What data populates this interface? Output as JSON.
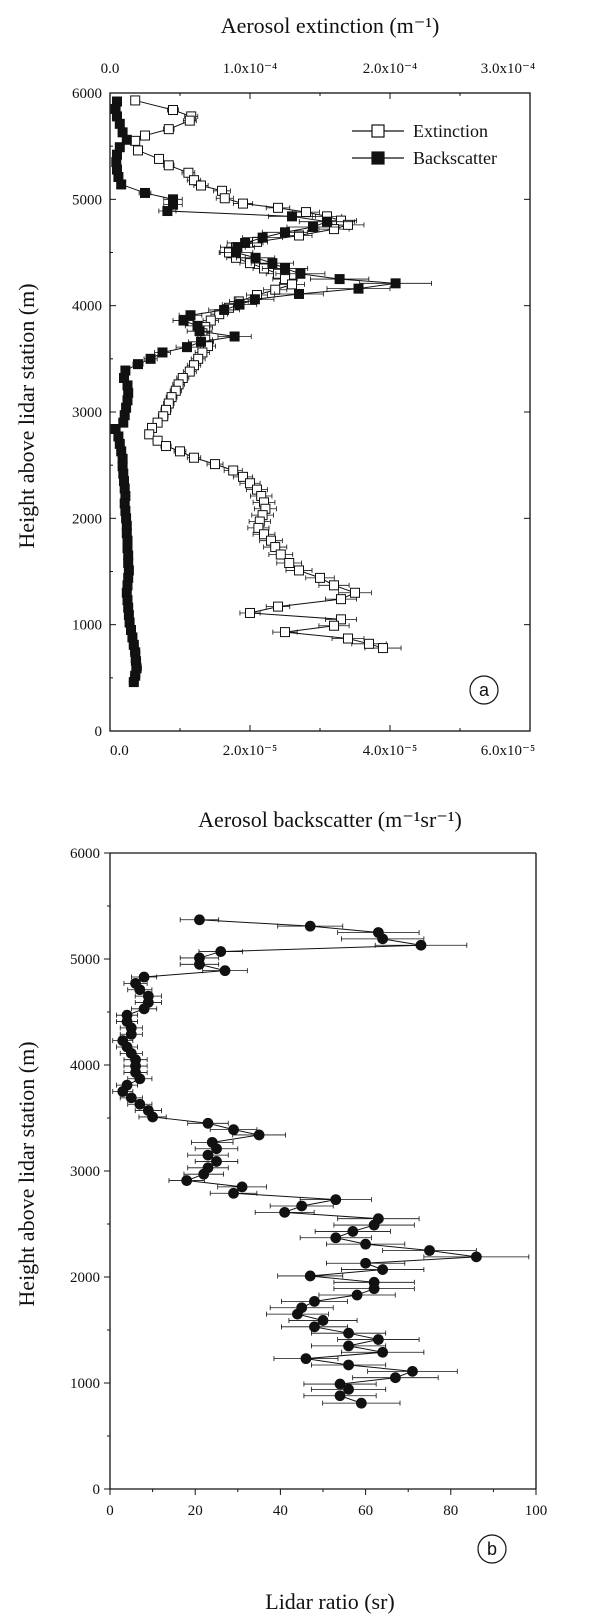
{
  "chart_data": [
    {
      "panel": "a",
      "type": "line",
      "xlabel_bottom": "Aerosol backscatter (m⁻¹sr⁻¹)",
      "xlabel_top": "Aerosol extinction (m⁻¹)",
      "ylabel": "Height above lidar station (m)",
      "xlim_bottom": [
        0,
        6e-05
      ],
      "xlim_top": [
        0,
        0.0003
      ],
      "ylim": [
        0,
        6000
      ],
      "bottom_ticks": [
        "0.0",
        "2.0x10⁻⁵",
        "4.0x10⁻⁵",
        "6.0x10⁻⁵"
      ],
      "top_ticks": [
        "0.0",
        "1.0x10⁻⁴",
        "2.0x10⁻⁴",
        "3.0x10⁻⁴"
      ],
      "y_ticks": [
        "0",
        "1000",
        "2000",
        "3000",
        "4000",
        "5000",
        "6000"
      ],
      "legend_position": "top-right",
      "series": [
        {
          "name": "Extinction",
          "axis": "top",
          "marker": "open-square",
          "points": [
            [
              5930,
              1.8e-05
            ],
            [
              5840,
              4.5e-05
            ],
            [
              5780,
              5.8e-05
            ],
            [
              5740,
              5.7e-05
            ],
            [
              5660,
              4.2e-05
            ],
            [
              5600,
              2.5e-05
            ],
            [
              5550,
              1.8e-05
            ],
            [
              5460,
              2e-05
            ],
            [
              5380,
              3.5e-05
            ],
            [
              5320,
              4.2e-05
            ],
            [
              5250,
              5.6e-05
            ],
            [
              5180,
              6e-05
            ],
            [
              5130,
              6.5e-05
            ],
            [
              5080,
              8e-05
            ],
            [
              5010,
              8.2e-05
            ],
            [
              4960,
              9.5e-05
            ],
            [
              4920,
              0.00012
            ],
            [
              4880,
              0.00014
            ],
            [
              4840,
              0.000155
            ],
            [
              4800,
              0.000165
            ],
            [
              4760,
              0.00017
            ],
            [
              4720,
              0.00016
            ],
            [
              4660,
              0.000135
            ],
            [
              4600,
              0.000105
            ],
            [
              4550,
              9e-05
            ],
            [
              4500,
              8.5e-05
            ],
            [
              4450,
              9e-05
            ],
            [
              4400,
              0.0001
            ],
            [
              4350,
              0.00011
            ],
            [
              4300,
              0.00012
            ],
            [
              4250,
              0.000125
            ],
            [
              4200,
              0.00013
            ],
            [
              4150,
              0.000118
            ],
            [
              4100,
              0.000105
            ],
            [
              4040,
              9.2e-05
            ],
            [
              3980,
              8.5e-05
            ],
            [
              3920,
              7.8e-05
            ],
            [
              3860,
              7.2e-05
            ],
            [
              3800,
              6.8e-05
            ],
            [
              3740,
              6.6e-05
            ],
            [
              3680,
              6.8e-05
            ],
            [
              3620,
              7e-05
            ],
            [
              3560,
              6.6e-05
            ],
            [
              3500,
              6.3e-05
            ],
            [
              3440,
              6e-05
            ],
            [
              3380,
              5.7e-05
            ],
            [
              3320,
              5.2e-05
            ],
            [
              3260,
              4.9e-05
            ],
            [
              3200,
              4.7e-05
            ],
            [
              3140,
              4.4e-05
            ],
            [
              3080,
              4.2e-05
            ],
            [
              3020,
              4e-05
            ],
            [
              2960,
              3.8e-05
            ],
            [
              2900,
              3.4e-05
            ],
            [
              2850,
              3e-05
            ],
            [
              2790,
              2.8e-05
            ],
            [
              2730,
              3.4e-05
            ],
            [
              2680,
              4e-05
            ],
            [
              2630,
              5e-05
            ],
            [
              2570,
              6e-05
            ],
            [
              2510,
              7.5e-05
            ],
            [
              2450,
              8.8e-05
            ],
            [
              2390,
              9.5e-05
            ],
            [
              2330,
              0.0001
            ],
            [
              2270,
              0.000105
            ],
            [
              2210,
              0.000108
            ],
            [
              2150,
              0.00011
            ],
            [
              2090,
              0.000111
            ],
            [
              2030,
              0.000109
            ],
            [
              1970,
              0.000107
            ],
            [
              1910,
              0.000106
            ],
            [
              1850,
              0.00011
            ],
            [
              1790,
              0.000115
            ],
            [
              1730,
              0.000118
            ],
            [
              1660,
              0.000122
            ],
            [
              1580,
              0.000128
            ],
            [
              1510,
              0.000135
            ],
            [
              1440,
              0.00015
            ],
            [
              1370,
              0.00016
            ],
            [
              1300,
              0.000175
            ],
            [
              1240,
              0.000165
            ],
            [
              1170,
              0.00012
            ],
            [
              1110,
              0.0001
            ],
            [
              1050,
              0.000165
            ],
            [
              990,
              0.00016
            ],
            [
              930,
              0.000125
            ],
            [
              870,
              0.00017
            ],
            [
              820,
              0.000185
            ],
            [
              780,
              0.000195
            ]
          ]
        },
        {
          "name": "Backscatter",
          "axis": "bottom",
          "marker": "filled-square",
          "points": [
            [
              5920,
              1e-06
            ],
            [
              5850,
              8e-07
            ],
            [
              5780,
              1e-06
            ],
            [
              5710,
              1.4e-06
            ],
            [
              5630,
              1.8e-06
            ],
            [
              5560,
              2.4e-06
            ],
            [
              5490,
              1.4e-06
            ],
            [
              5420,
              1e-06
            ],
            [
              5350,
              9e-07
            ],
            [
              5280,
              1e-06
            ],
            [
              5210,
              1.2e-06
            ],
            [
              5140,
              1.6e-06
            ],
            [
              5060,
              5e-06
            ],
            [
              5000,
              9e-06
            ],
            [
              4950,
              9e-06
            ],
            [
              4890,
              8.2e-06
            ],
            [
              4840,
              2.6e-05
            ],
            [
              4790,
              3.1e-05
            ],
            [
              4740,
              2.9e-05
            ],
            [
              4690,
              2.5e-05
            ],
            [
              4640,
              2.18e-05
            ],
            [
              4590,
              1.93e-05
            ],
            [
              4550,
              1.82e-05
            ],
            [
              4500,
              1.8e-05
            ],
            [
              4450,
              2.08e-05
            ],
            [
              4400,
              2.32e-05
            ],
            [
              4350,
              2.5e-05
            ],
            [
              4300,
              2.72e-05
            ],
            [
              4250,
              3.28e-05
            ],
            [
              4210,
              4.08e-05
            ],
            [
              4160,
              3.55e-05
            ],
            [
              4110,
              2.7e-05
            ],
            [
              4060,
              2.07e-05
            ],
            [
              4010,
              1.85e-05
            ],
            [
              3960,
              1.63e-05
            ],
            [
              3910,
              1.15e-05
            ],
            [
              3860,
              1.05e-05
            ],
            [
              3810,
              1.25e-05
            ],
            [
              3760,
              1.28e-05
            ],
            [
              3710,
              1.78e-05
            ],
            [
              3660,
              1.3e-05
            ],
            [
              3610,
              1.1e-05
            ],
            [
              3560,
              7.5e-06
            ],
            [
              3500,
              5.8e-06
            ],
            [
              3450,
              4e-06
            ],
            [
              3390,
              2.2e-06
            ],
            [
              3320,
              2e-06
            ],
            [
              3250,
              2.5e-06
            ],
            [
              3180,
              2.6e-06
            ],
            [
              3110,
              2.5e-06
            ],
            [
              3040,
              2.3e-06
            ],
            [
              2970,
              2.1e-06
            ],
            [
              2900,
              1.9e-06
            ],
            [
              2840,
              8e-07
            ],
            [
              2770,
              1.2e-06
            ],
            [
              2700,
              1.4e-06
            ],
            [
              2630,
              1.6e-06
            ],
            [
              2560,
              1.8e-06
            ],
            [
              2490,
              1.8e-06
            ],
            [
              2420,
              1.9e-06
            ],
            [
              2350,
              2e-06
            ],
            [
              2280,
              2.1e-06
            ],
            [
              2210,
              2.2e-06
            ],
            [
              2140,
              2.1e-06
            ],
            [
              2070,
              2.2e-06
            ],
            [
              2000,
              2.3e-06
            ],
            [
              1930,
              2.4e-06
            ],
            [
              1860,
              2.4e-06
            ],
            [
              1790,
              2.5e-06
            ],
            [
              1720,
              2.5e-06
            ],
            [
              1650,
              2.6e-06
            ],
            [
              1580,
              2.6e-06
            ],
            [
              1510,
              2.7e-06
            ],
            [
              1440,
              2.6e-06
            ],
            [
              1370,
              2.5e-06
            ],
            [
              1300,
              2.4e-06
            ],
            [
              1230,
              2.5e-06
            ],
            [
              1160,
              2.6e-06
            ],
            [
              1090,
              2.7e-06
            ],
            [
              1020,
              2.8e-06
            ],
            [
              950,
              3e-06
            ],
            [
              880,
              3.2e-06
            ],
            [
              810,
              3.4e-06
            ],
            [
              740,
              3.6e-06
            ],
            [
              660,
              3.7e-06
            ],
            [
              590,
              3.8e-06
            ],
            [
              520,
              3.6e-06
            ],
            [
              460,
              3.4e-06
            ]
          ]
        }
      ],
      "legend": [
        "Extinction",
        "Backscatter"
      ],
      "panel_label": "a"
    },
    {
      "panel": "b",
      "type": "line",
      "xlabel": "Lidar ratio (sr)",
      "ylabel": "Height above lidar station (m)",
      "xlim": [
        0,
        100
      ],
      "ylim": [
        0,
        6000
      ],
      "x_ticks": [
        "0",
        "20",
        "40",
        "60",
        "80",
        "100"
      ],
      "y_ticks": [
        "0",
        "1000",
        "2000",
        "3000",
        "4000",
        "5000",
        "6000"
      ],
      "series": [
        {
          "name": "",
          "marker": "filled-circle",
          "points": [
            [
              5370,
              21
            ],
            [
              5310,
              47
            ],
            [
              5250,
              63
            ],
            [
              5190,
              64
            ],
            [
              5130,
              73
            ],
            [
              5070,
              26
            ],
            [
              5010,
              21
            ],
            [
              4950,
              21
            ],
            [
              4890,
              27
            ],
            [
              4830,
              8
            ],
            [
              4770,
              6
            ],
            [
              4710,
              7
            ],
            [
              4650,
              9
            ],
            [
              4590,
              9
            ],
            [
              4530,
              8
            ],
            [
              4470,
              4
            ],
            [
              4410,
              4
            ],
            [
              4350,
              5
            ],
            [
              4290,
              5
            ],
            [
              4230,
              3
            ],
            [
              4170,
              4
            ],
            [
              4110,
              5
            ],
            [
              4050,
              6
            ],
            [
              3990,
              6
            ],
            [
              3930,
              6
            ],
            [
              3870,
              7
            ],
            [
              3810,
              4
            ],
            [
              3750,
              3
            ],
            [
              3690,
              5
            ],
            [
              3630,
              7
            ],
            [
              3570,
              9
            ],
            [
              3510,
              10
            ],
            [
              3450,
              23
            ],
            [
              3390,
              29
            ],
            [
              3340,
              35
            ],
            [
              3270,
              24
            ],
            [
              3210,
              25
            ],
            [
              3150,
              23
            ],
            [
              3090,
              25
            ],
            [
              3030,
              23
            ],
            [
              2970,
              22
            ],
            [
              2910,
              18
            ],
            [
              2850,
              31
            ],
            [
              2790,
              29
            ],
            [
              2730,
              53
            ],
            [
              2670,
              45
            ],
            [
              2610,
              41
            ],
            [
              2550,
              63
            ],
            [
              2490,
              62
            ],
            [
              2430,
              57
            ],
            [
              2370,
              53
            ],
            [
              2310,
              60
            ],
            [
              2250,
              75
            ],
            [
              2190,
              86
            ],
            [
              2130,
              60
            ],
            [
              2070,
              64
            ],
            [
              2010,
              47
            ],
            [
              1950,
              62
            ],
            [
              1890,
              62
            ],
            [
              1830,
              58
            ],
            [
              1770,
              48
            ],
            [
              1710,
              45
            ],
            [
              1650,
              44
            ],
            [
              1590,
              50
            ],
            [
              1530,
              48
            ],
            [
              1470,
              56
            ],
            [
              1410,
              63
            ],
            [
              1350,
              56
            ],
            [
              1290,
              64
            ],
            [
              1230,
              46
            ],
            [
              1170,
              56
            ],
            [
              1110,
              71
            ],
            [
              1050,
              67
            ],
            [
              990,
              54
            ],
            [
              940,
              56
            ],
            [
              880,
              54
            ],
            [
              810,
              59
            ]
          ]
        }
      ],
      "panel_label": "b"
    }
  ]
}
